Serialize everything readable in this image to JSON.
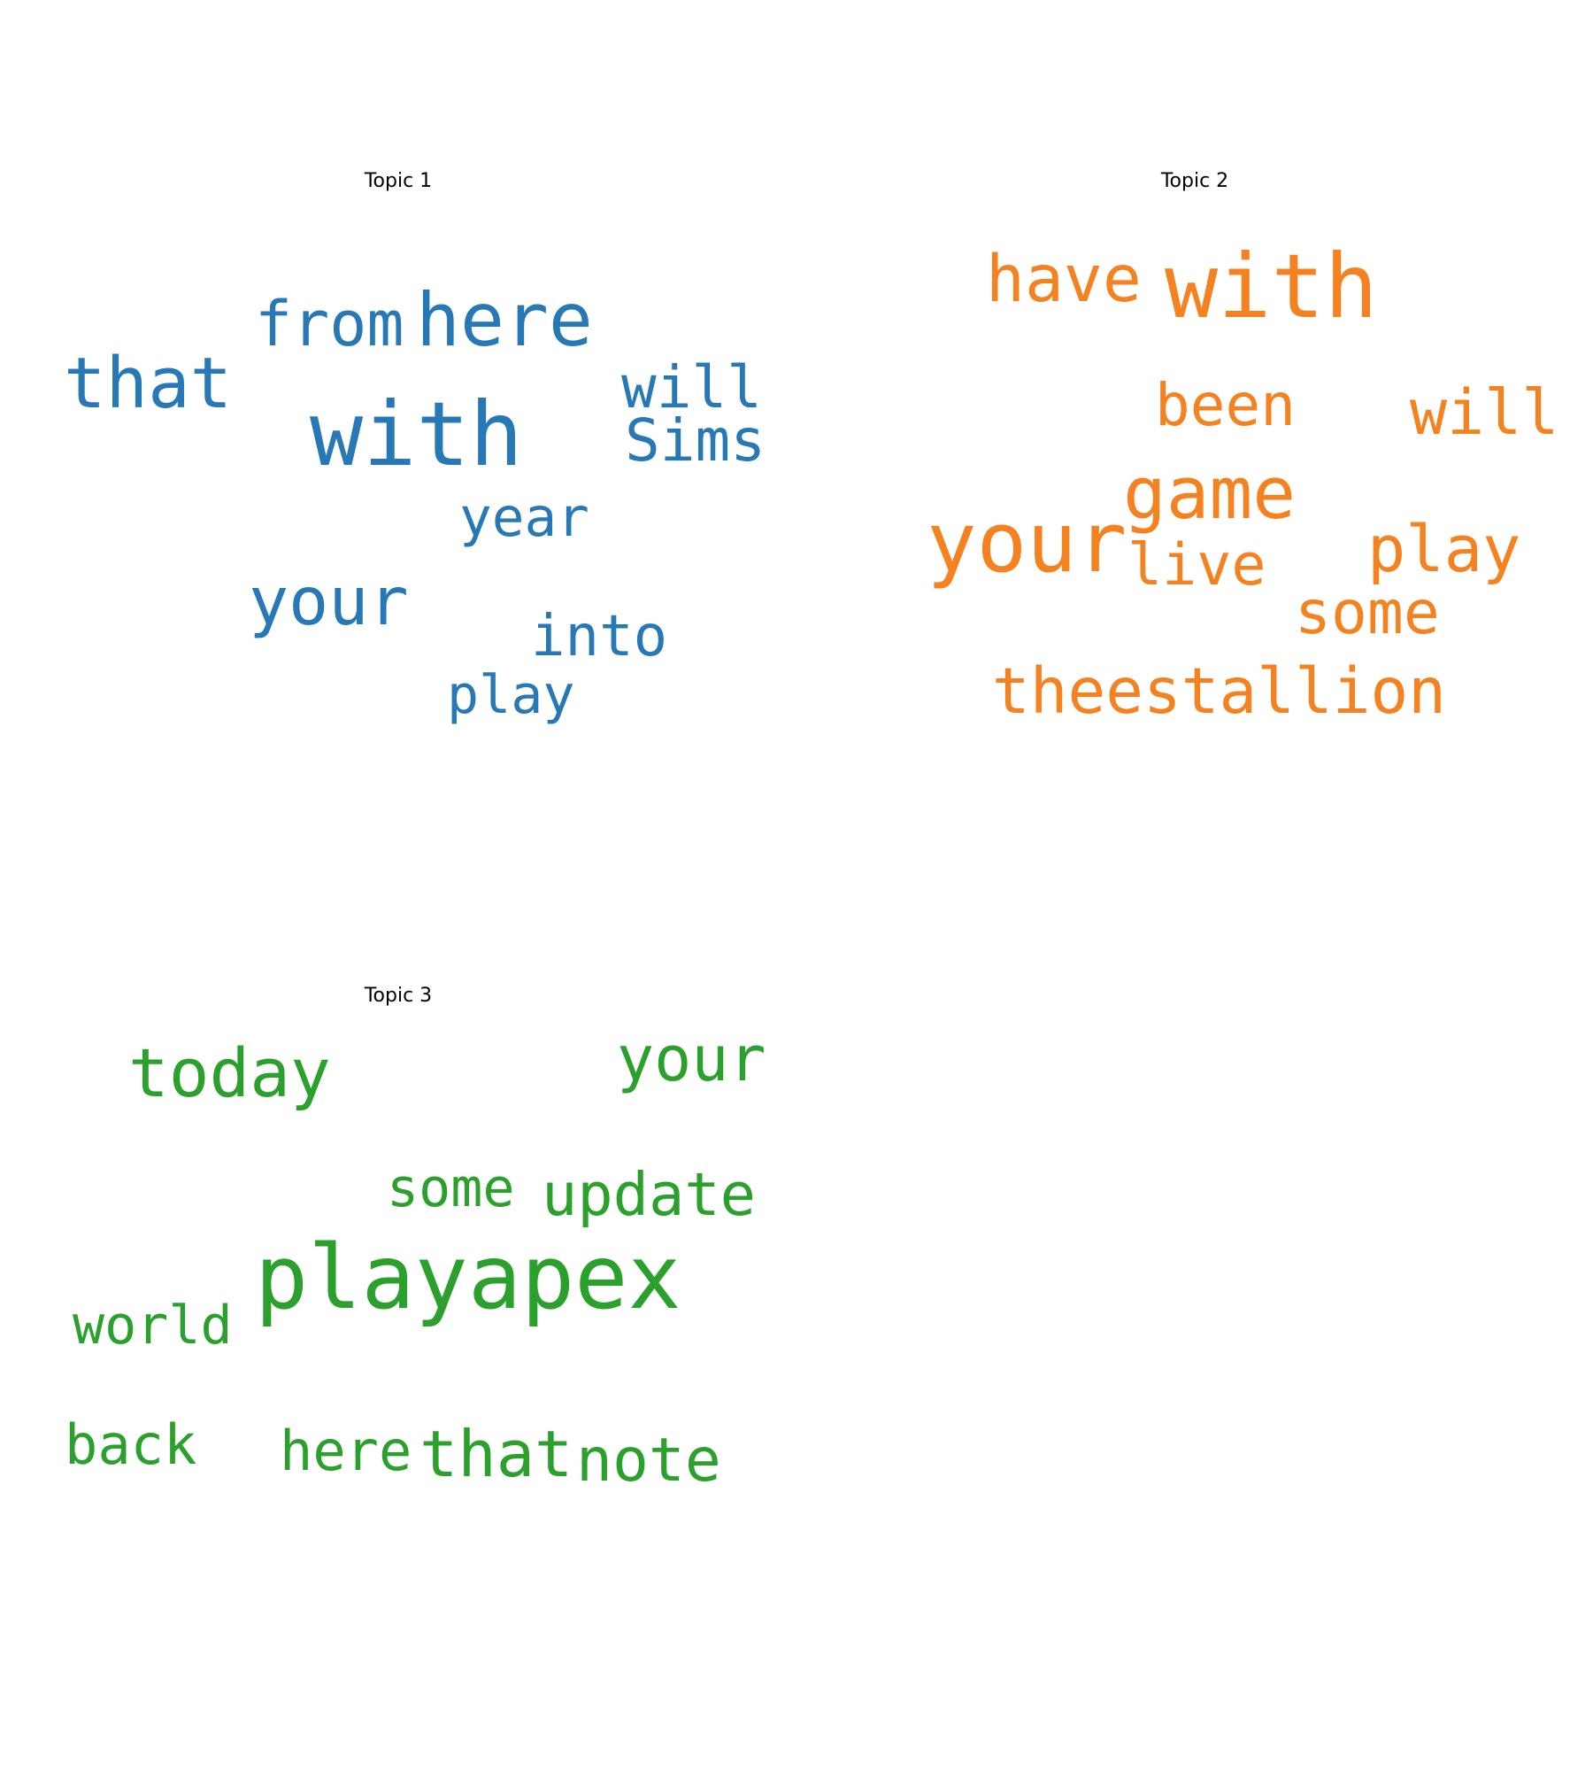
{
  "chart_data": [
    {
      "type": "wordcloud",
      "title": "Topic 1",
      "color": "#2878b5",
      "words": [
        {
          "text": "with",
          "weight": 100
        },
        {
          "text": "here",
          "weight": 83
        },
        {
          "text": "that",
          "weight": 79
        },
        {
          "text": "your",
          "weight": 75
        },
        {
          "text": "from",
          "weight": 70
        },
        {
          "text": "will",
          "weight": 66
        },
        {
          "text": "Sims",
          "weight": 66
        },
        {
          "text": "into",
          "weight": 64
        },
        {
          "text": "year",
          "weight": 61
        },
        {
          "text": "play",
          "weight": 60
        }
      ]
    },
    {
      "type": "wordcloud",
      "title": "Topic 2",
      "color": "#f58220",
      "words": [
        {
          "text": "with",
          "weight": 100
        },
        {
          "text": "your",
          "weight": 94
        },
        {
          "text": "game",
          "weight": 81
        },
        {
          "text": "have",
          "weight": 73
        },
        {
          "text": "play",
          "weight": 72
        },
        {
          "text": "theestallion",
          "weight": 71
        },
        {
          "text": "will",
          "weight": 70
        },
        {
          "text": "some",
          "weight": 68
        },
        {
          "text": "been",
          "weight": 66
        },
        {
          "text": "live",
          "weight": 65
        }
      ]
    },
    {
      "type": "wordcloud",
      "title": "Topic 3",
      "color": "#2ca02c",
      "words": [
        {
          "text": "playapex",
          "weight": 100
        },
        {
          "text": "today",
          "weight": 76
        },
        {
          "text": "that",
          "weight": 72
        },
        {
          "text": "your",
          "weight": 70
        },
        {
          "text": "note",
          "weight": 68
        },
        {
          "text": "update",
          "weight": 67
        },
        {
          "text": "here",
          "weight": 62
        },
        {
          "text": "back",
          "weight": 62
        },
        {
          "text": "some",
          "weight": 60
        },
        {
          "text": "world",
          "weight": 60
        }
      ]
    }
  ]
}
